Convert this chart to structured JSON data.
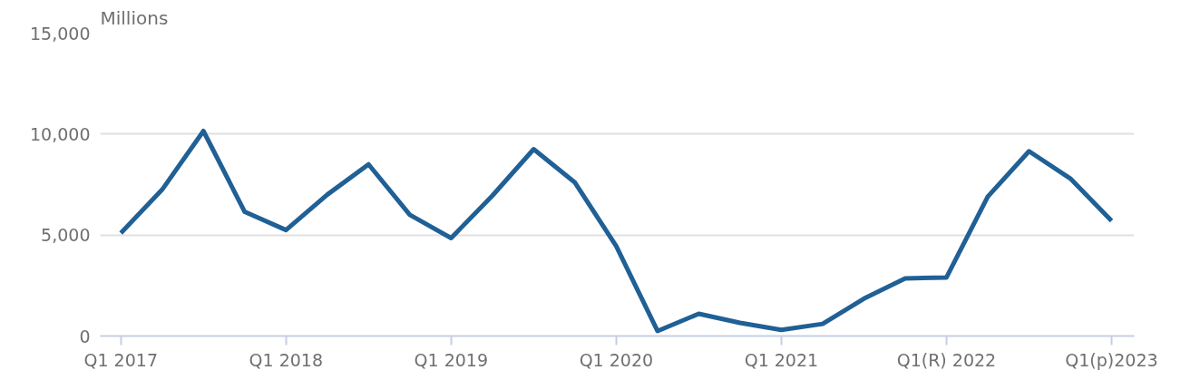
{
  "chart_data": {
    "type": "line",
    "ylabel": "Millions",
    "categories": [
      "Q1 2017",
      null,
      null,
      null,
      "Q1 2018",
      null,
      null,
      null,
      "Q1 2019",
      null,
      null,
      null,
      "Q1 2020",
      null,
      null,
      null,
      "Q1 2021",
      null,
      null,
      null,
      "Q1(R) 2022",
      null,
      null,
      null,
      "Q1(p)2023"
    ],
    "series": [
      {
        "color": "#206095",
        "values": [
          5100,
          7250,
          10150,
          6150,
          5250,
          7000,
          8500,
          6000,
          4850,
          6950,
          9250,
          7600,
          4450,
          250,
          1100,
          650,
          300,
          600,
          1850,
          2850,
          2900,
          6900,
          9150,
          7800,
          5700
        ]
      }
    ],
    "ylim": [
      0,
      15000
    ],
    "yticks": [
      0,
      {
        "value": 5000,
        "label": "5,000"
      },
      {
        "value": 10000,
        "label": "10,000"
      },
      {
        "value": 15000,
        "label": "15,000"
      }
    ],
    "grid": "y",
    "marker": "none",
    "line_style": "solid"
  }
}
